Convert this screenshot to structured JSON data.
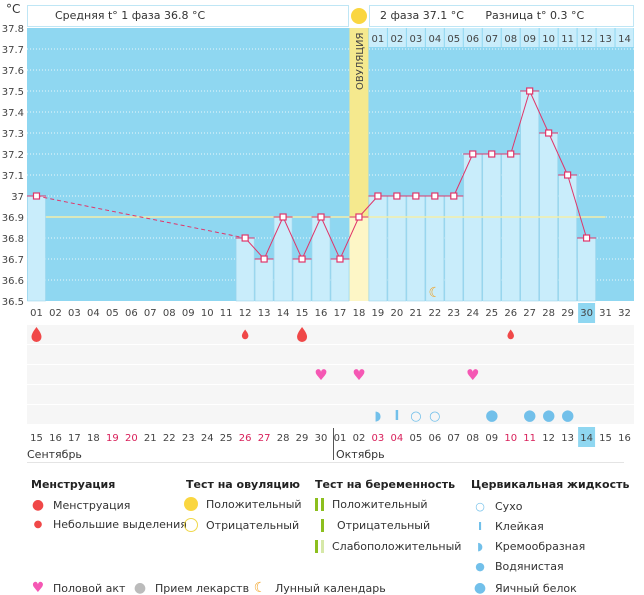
{
  "header": {
    "unit": "°C",
    "phase1_label": "Средняя t° 1 фаза 36.8 °C",
    "phase2_label": "2 фаза 37.1 °C",
    "difference_label": "Разница t° 0.3 °C",
    "ovulation_label": "ОВУЛЯЦИЯ"
  },
  "chart_data": {
    "type": "line",
    "title": "",
    "ylabel": "°C",
    "ylim": [
      36.5,
      37.8
    ],
    "yticks": [
      "37.8",
      "37.7",
      "37.6",
      "37.5",
      "37.4",
      "37.3",
      "37.2",
      "37.1",
      "37",
      "36.9",
      "36.8",
      "36.7",
      "36.6",
      "36.5"
    ],
    "cycle_days": [
      "01",
      "02",
      "03",
      "04",
      "05",
      "06",
      "07",
      "08",
      "09",
      "10",
      "11",
      "12",
      "13",
      "14",
      "15",
      "16",
      "17",
      "18",
      "19",
      "20",
      "21",
      "22",
      "23",
      "24",
      "25",
      "26",
      "27",
      "28",
      "29",
      "30",
      "31",
      "32"
    ],
    "temperatures": [
      37.0,
      null,
      null,
      null,
      null,
      null,
      null,
      null,
      null,
      null,
      null,
      36.8,
      36.7,
      36.9,
      36.7,
      36.9,
      36.7,
      36.9,
      37.0,
      37.0,
      37.0,
      37.0,
      37.0,
      37.2,
      37.2,
      37.2,
      37.5,
      37.3,
      37.1,
      36.8,
      null,
      null
    ],
    "coverline": 36.9,
    "ovulation_day": 18,
    "current_day": 30,
    "phase2_days": [
      "01",
      "02",
      "03",
      "04",
      "05",
      "06",
      "07",
      "08",
      "09",
      "10",
      "11",
      "12",
      "13",
      "14"
    ],
    "moon_day": 22
  },
  "calendar": {
    "dates": [
      "15",
      "16",
      "17",
      "18",
      "19",
      "20",
      "21",
      "22",
      "23",
      "24",
      "25",
      "26",
      "27",
      "28",
      "29",
      "30",
      "01",
      "02",
      "03",
      "04",
      "05",
      "06",
      "07",
      "08",
      "09",
      "10",
      "11",
      "12",
      "13",
      "14",
      "15",
      "16"
    ],
    "weekend_indices": [
      4,
      5,
      11,
      12,
      18,
      19,
      25,
      26
    ],
    "today_index": 29,
    "months": [
      "Сентябрь",
      "Октябрь"
    ]
  },
  "markers": {
    "menstruation": {
      "1": "heavy",
      "12": "light",
      "15": "heavy",
      "26": "light"
    },
    "intercourse": [
      16,
      18,
      24
    ],
    "cervical_fluid": {
      "19": "creamy",
      "20": "sticky",
      "21": "dry",
      "22": "dry",
      "25": "egg-white",
      "27": "egg-white",
      "28": "egg-white",
      "29": "egg-white"
    }
  },
  "legend": {
    "menstruation": {
      "title": "Менструация",
      "items": [
        "Менструация",
        "Небольшие выделения"
      ]
    },
    "ovulation_test": {
      "title": "Тест на овуляцию",
      "items": [
        "Положительный",
        "Отрицательный"
      ]
    },
    "pregnancy_test": {
      "title": "Тест на беременность",
      "items": [
        "Положительный",
        "Отрицательный",
        "Слабоположительный"
      ]
    },
    "cervical_fluid": {
      "title": "Цервикальная жидкость",
      "items": [
        "Сухо",
        "Клейкая",
        "Кремообразная",
        "Водянистая",
        "Яичный белок"
      ]
    },
    "other": [
      "Половой акт",
      "Прием лекарств",
      "Лунный календарь"
    ]
  },
  "colors": {
    "line": "#e0366a",
    "bar": "#c9edfb",
    "bg": "#8fd7f1",
    "ovulation": "#f5e98e",
    "coverline": "#f3eeaa",
    "blood": "#f04848",
    "heart": "#f558b4",
    "fluid": "#72c0ea",
    "weekend": "#d8205a"
  }
}
